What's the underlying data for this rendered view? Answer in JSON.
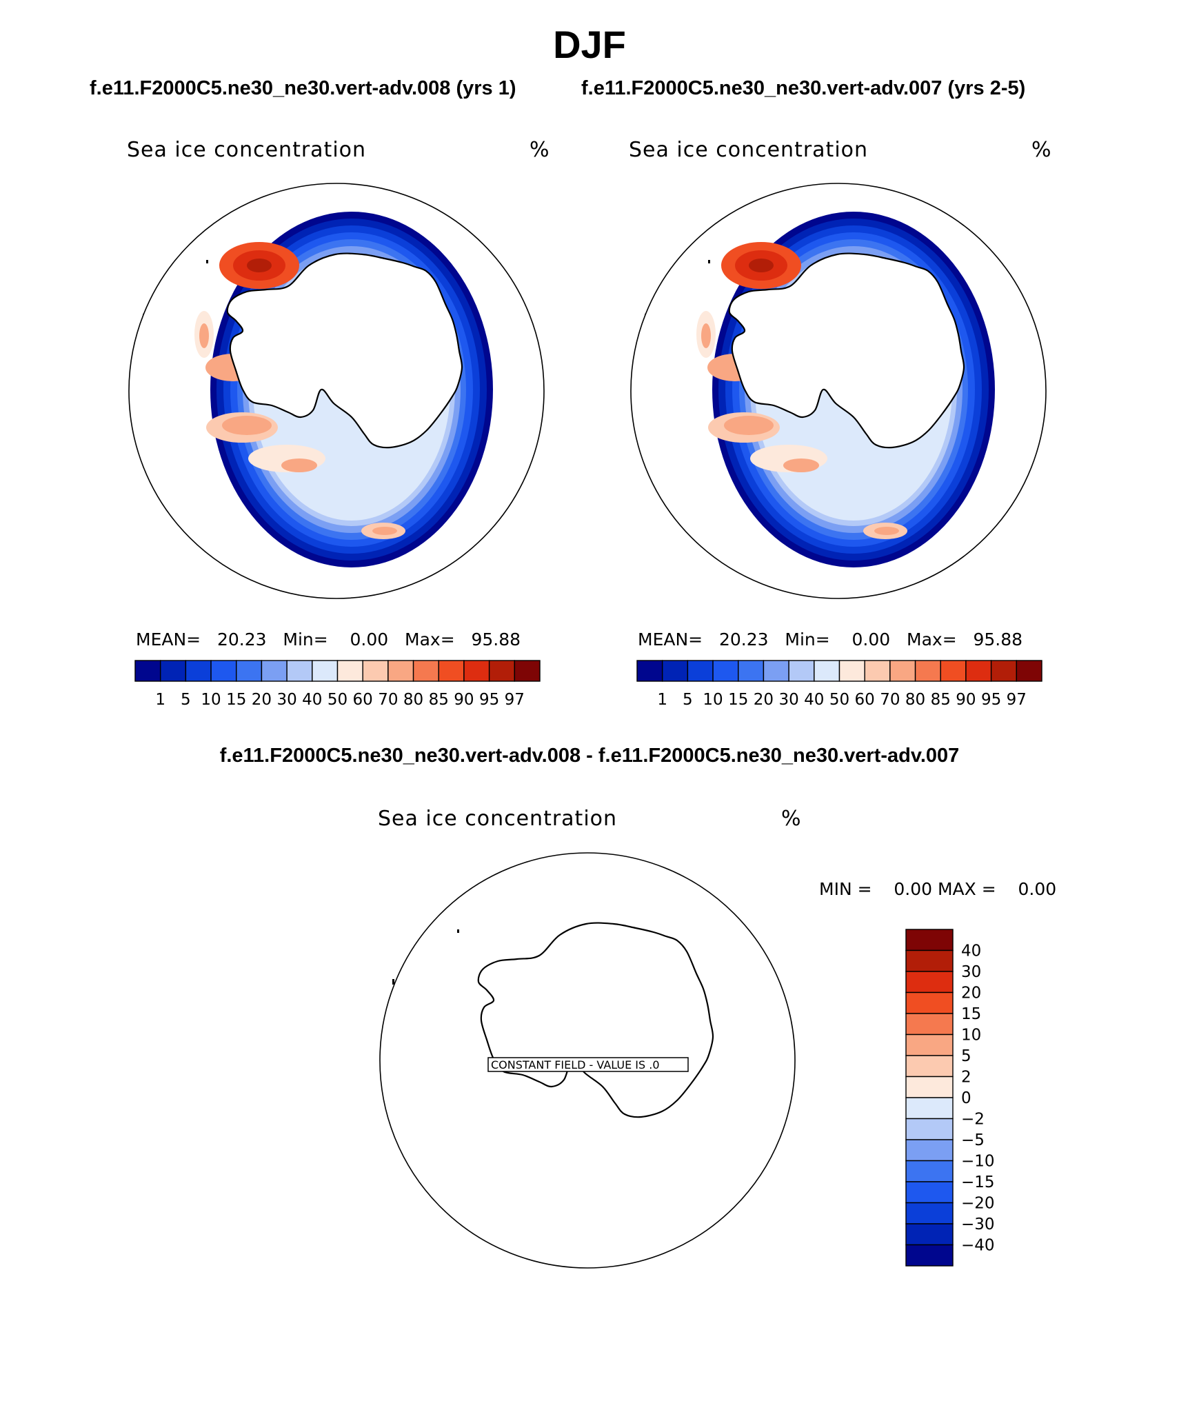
{
  "title": "DJF",
  "case_titles": {
    "left": "f.e11.F2000C5.ne30_ne30.vert-adv.008 (yrs 1)",
    "right": "f.e11.F2000C5.ne30_ne30.vert-adv.007 (yrs 2-5)"
  },
  "diff_title": "f.e11.F2000C5.ne30_ne30.vert-adv.008 - f.e11.F2000C5.ne30_ne30.vert-adv.007",
  "colors": {
    "ice": [
      "#00068e",
      "#0023b5",
      "#0b3fd9",
      "#1e58ef",
      "#3c74f1",
      "#7b9ff3",
      "#b3c9f7",
      "#dce9fb",
      "#fde9dc",
      "#fccab0",
      "#f9a783",
      "#f5794f",
      "#f04e22",
      "#dd2d10",
      "#b21e08",
      "#7e0505"
    ],
    "diff": [
      "#00068e",
      "#0023b5",
      "#0b3fd9",
      "#1e58ef",
      "#3c74f1",
      "#7b9ff3",
      "#b3c9f7",
      "#dce9fb",
      "#fde9dc",
      "#fccab0",
      "#f9a783",
      "#f5794f",
      "#f04e22",
      "#dd2d10",
      "#b21e08",
      "#7e0505"
    ]
  },
  "chart_data": [
    {
      "type": "heatmap",
      "title": "Sea ice concentration",
      "units": "%",
      "projection": "south-polar-stereographic",
      "case": "f.e11.F2000C5.ne30_ne30.vert-adv.008 (yrs 1)",
      "stats": {
        "mean_label": "MEAN=",
        "mean": "20.23",
        "min_label": "Min=",
        "min": "0.00",
        "max_label": "Max=",
        "max": "95.88"
      },
      "contour_levels": [
        "1",
        "5",
        "10",
        "15",
        "20",
        "30",
        "40",
        "50",
        "60",
        "70",
        "80",
        "85",
        "90",
        "95",
        "97"
      ]
    },
    {
      "type": "heatmap",
      "title": "Sea ice concentration",
      "units": "%",
      "projection": "south-polar-stereographic",
      "case": "f.e11.F2000C5.ne30_ne30.vert-adv.007 (yrs 2-5)",
      "stats": {
        "mean_label": "MEAN=",
        "mean": "20.23",
        "min_label": "Min=",
        "min": "0.00",
        "max_label": "Max=",
        "max": "95.88"
      },
      "contour_levels": [
        "1",
        "5",
        "10",
        "15",
        "20",
        "30",
        "40",
        "50",
        "60",
        "70",
        "80",
        "85",
        "90",
        "95",
        "97"
      ]
    },
    {
      "type": "heatmap",
      "title": "Sea ice concentration",
      "units": "%",
      "projection": "south-polar-stereographic",
      "case": "difference",
      "annotation": "CONSTANT FIELD - VALUE IS .0",
      "stats": {
        "min_label": "MIN =",
        "min": "0.00",
        "max_label": "MAX =",
        "max": "0.00"
      },
      "contour_levels": [
        "-40",
        "-30",
        "-20",
        "-15",
        "-10",
        "-5",
        "-2",
        "0",
        "2",
        "5",
        "10",
        "15",
        "20",
        "30",
        "40"
      ]
    }
  ]
}
